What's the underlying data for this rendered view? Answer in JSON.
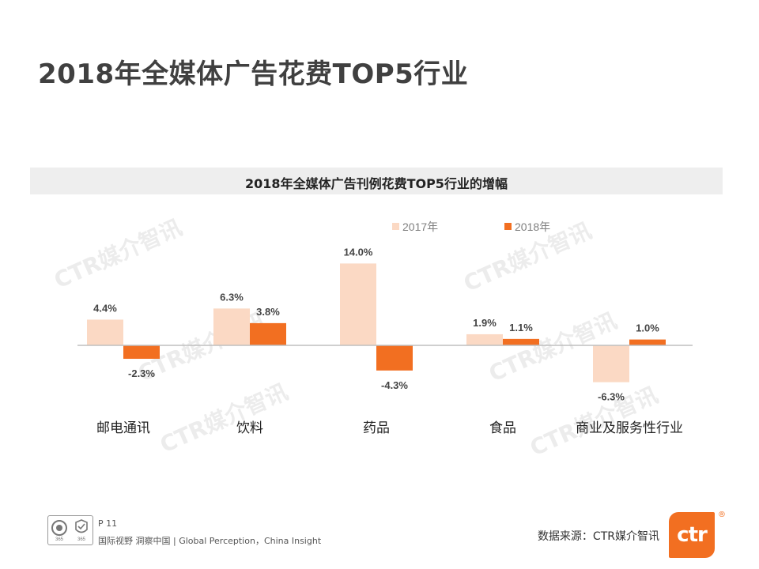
{
  "page": {
    "title": "2018年全媒体广告花费TOP5行业"
  },
  "chart_data": {
    "type": "bar",
    "title": "2018年全媒体广告刊例花费TOP5行业的增幅",
    "categories": [
      "邮电通讯",
      "饮料",
      "药品",
      "食品",
      "商业及服务性行业"
    ],
    "series": [
      {
        "name": "2017年",
        "color": "#fbd9c4",
        "values": [
          4.4,
          6.3,
          14.0,
          1.9,
          -6.3
        ]
      },
      {
        "name": "2018年",
        "color": "#f26f21",
        "values": [
          -2.3,
          3.8,
          -4.3,
          1.1,
          1.0
        ]
      }
    ],
    "value_suffix": "%",
    "ylim": [
      -7,
      15
    ],
    "grid": false,
    "legend_position": "top-right",
    "xlabel": "",
    "ylabel": ""
  },
  "watermark": {
    "text": "CTR媒介智讯"
  },
  "footer": {
    "page_label": "P 11",
    "tagline": "国际视野  洞察中国 |  Global Perception，China Insight",
    "source": "数据来源：CTR媒介智讯",
    "logo_text": "ctr",
    "logo_reg": "®",
    "cert_left_label": "365",
    "cert_right_label": "365"
  },
  "colors": {
    "accent": "#f26f21",
    "light_bar": "#fbd9c4",
    "title_text": "#404040"
  }
}
